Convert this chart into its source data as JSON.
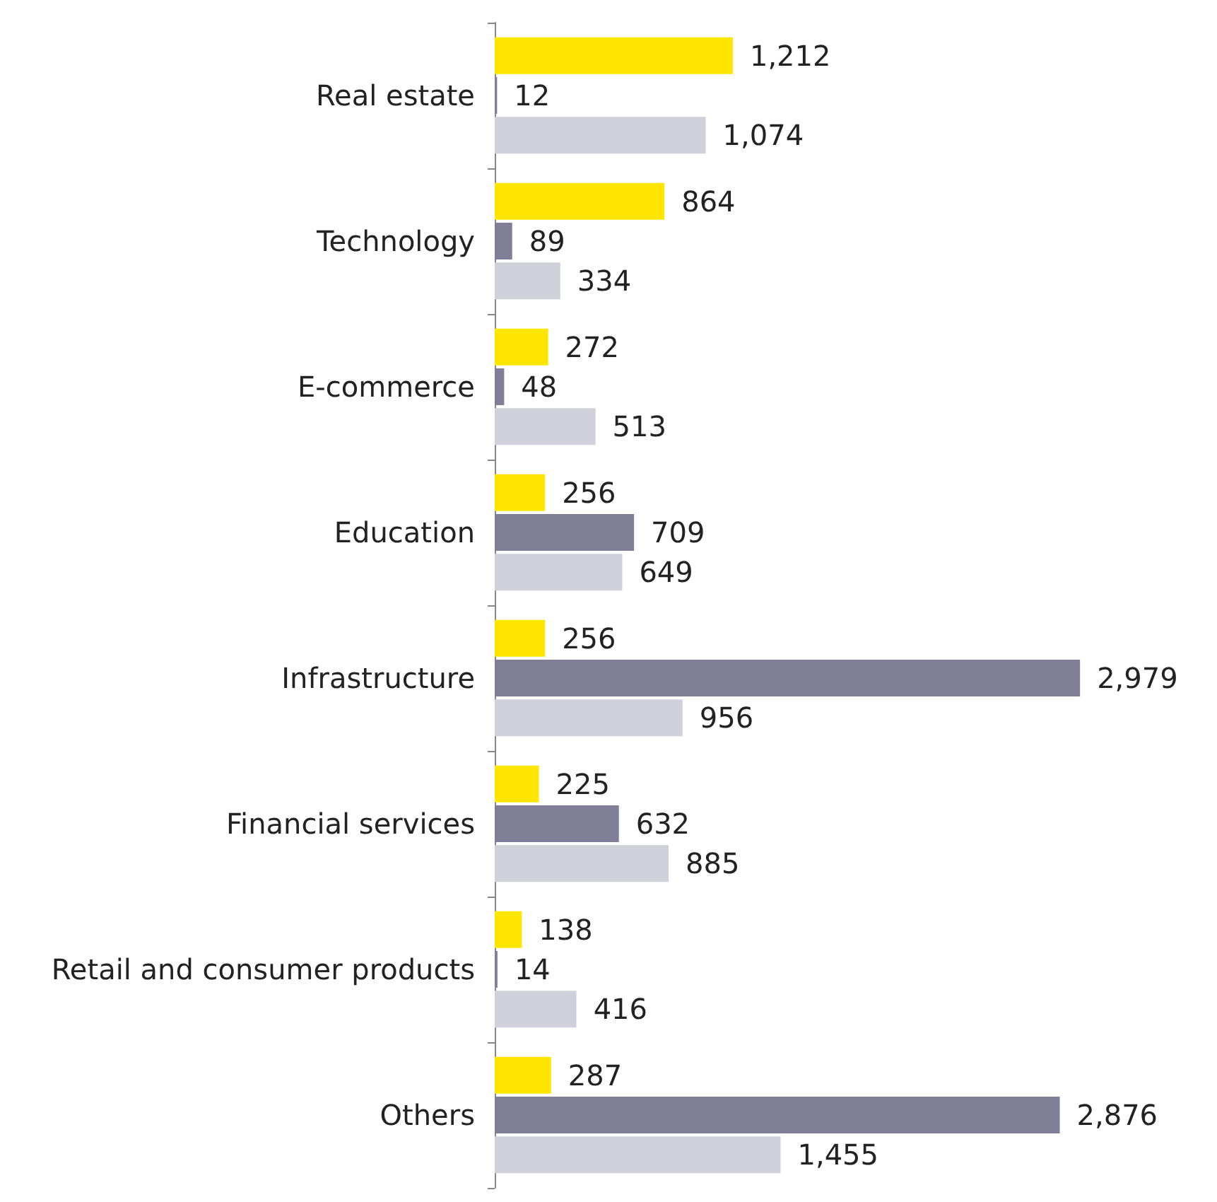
{
  "chart_data": {
    "type": "bar",
    "orientation": "horizontal",
    "categories": [
      "Real estate",
      "Technology",
      "E-commerce",
      "Education",
      "Infrastructure",
      "Financial services",
      "Retail and consumer products",
      "Others"
    ],
    "series": [
      {
        "color": "#ffe600",
        "values": [
          1212,
          864,
          272,
          256,
          256,
          225,
          138,
          287
        ],
        "value_labels": [
          "1,212",
          "864",
          "272",
          "256",
          "256",
          "225",
          "138",
          "287"
        ]
      },
      {
        "color": "#7f7e96",
        "values": [
          12,
          89,
          48,
          709,
          2979,
          632,
          14,
          2876
        ],
        "value_labels": [
          "12",
          "89",
          "48",
          "709",
          "2,979",
          "632",
          "14",
          "2,876"
        ]
      },
      {
        "color": "#d0d0da",
        "values": [
          1074,
          334,
          513,
          649,
          956,
          885,
          416,
          1455
        ],
        "value_labels": [
          "1,074",
          "334",
          "513",
          "649",
          "956",
          "885",
          "416",
          "1,455"
        ]
      }
    ],
    "grid": false
  }
}
